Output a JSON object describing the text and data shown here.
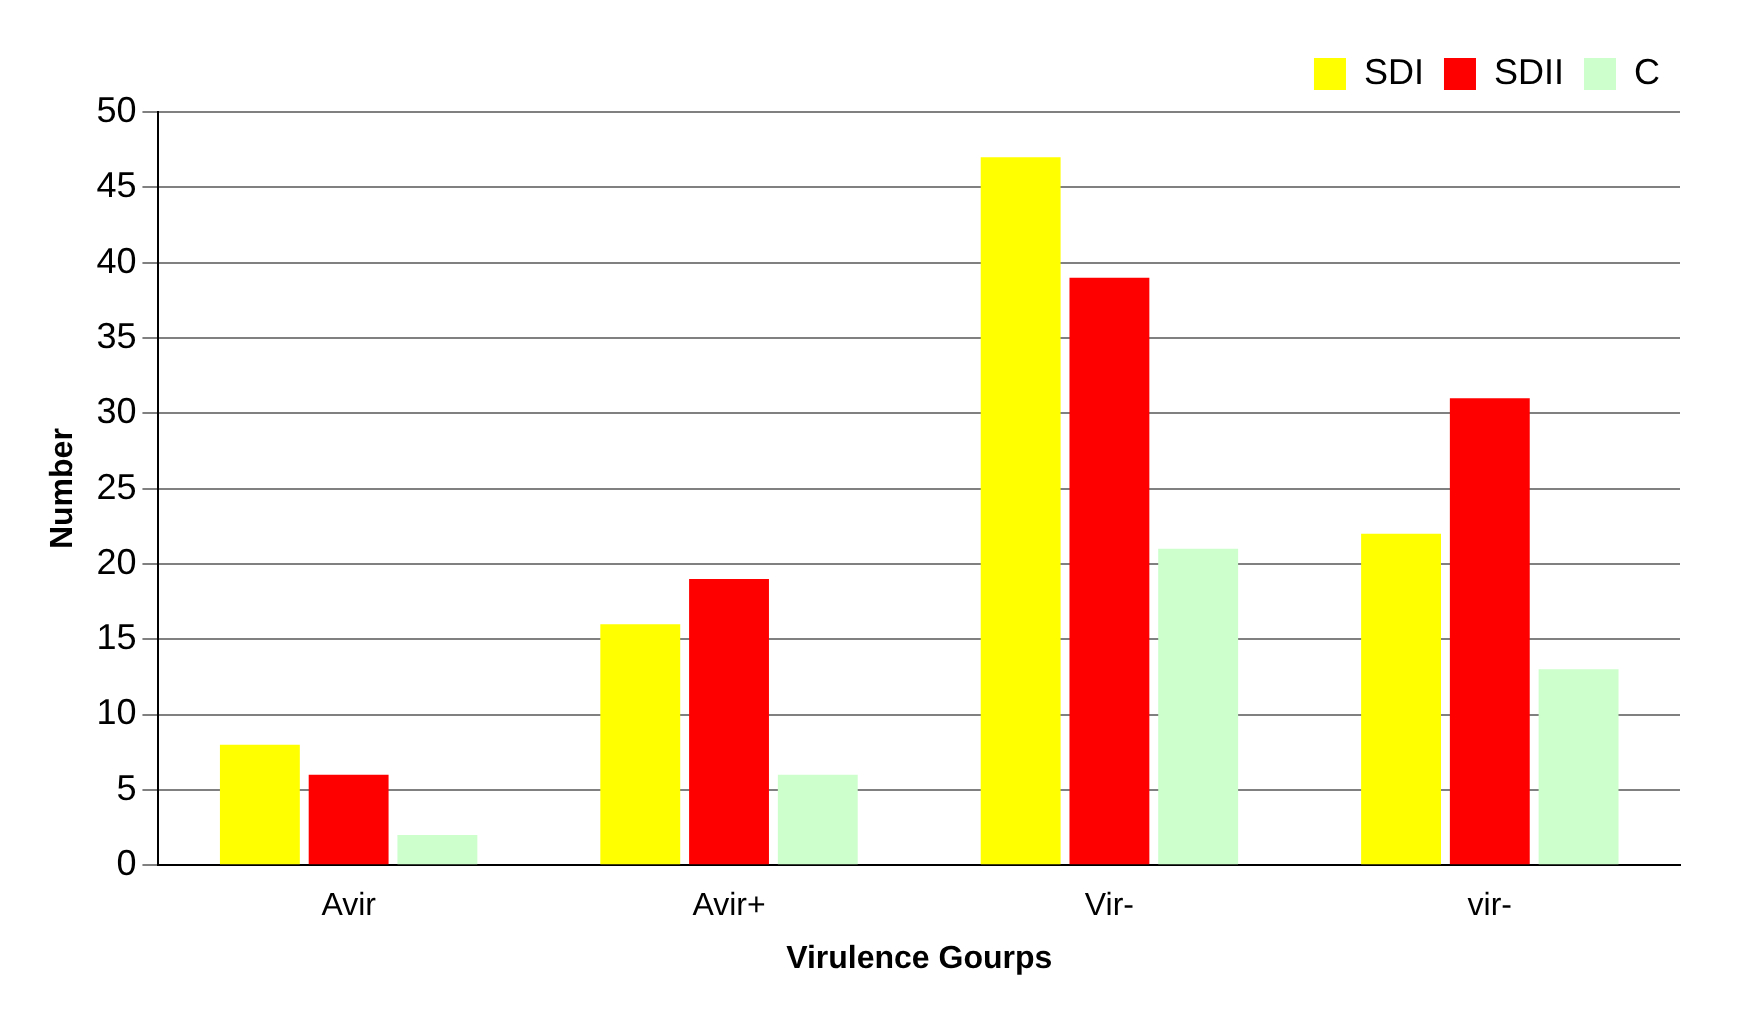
{
  "chart_data": {
    "type": "bar",
    "xlabel": "Virulence Gourps",
    "ylabel": "Number",
    "categories": [
      "Avir",
      "Avir+",
      "Vir-",
      "vir-"
    ],
    "series": [
      {
        "name": "SDI",
        "color": "#ffff00",
        "values": [
          8,
          16,
          47,
          22
        ]
      },
      {
        "name": "SDII",
        "color": "#ff0000",
        "values": [
          6,
          19,
          39,
          31
        ]
      },
      {
        "name": "C",
        "color": "#ccffcc",
        "values": [
          2,
          6,
          21,
          13
        ]
      }
    ],
    "ylim": [
      0,
      50
    ],
    "yticks": [
      0,
      5,
      10,
      15,
      20,
      25,
      30,
      35,
      40,
      45,
      50
    ],
    "grid": "y",
    "legend": "top right"
  }
}
